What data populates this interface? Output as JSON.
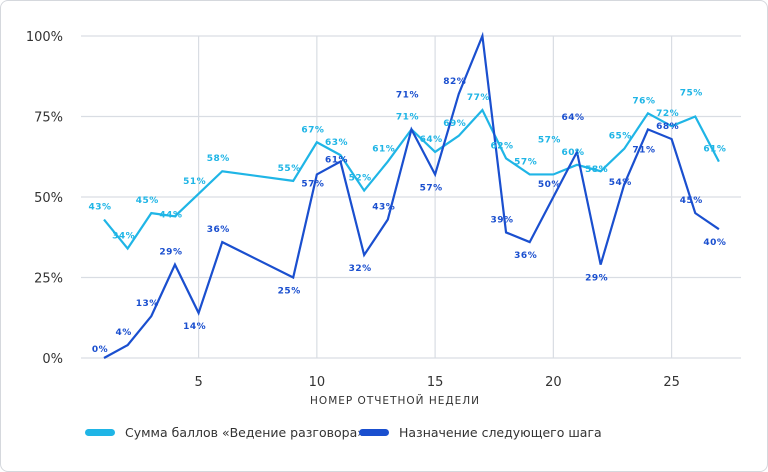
{
  "chart_data": {
    "type": "line",
    "xlabel": "НОМЕР ОТЧЕТНОЙ НЕДЕЛИ",
    "ylabel": "",
    "xlim": [
      1,
      27
    ],
    "ylim": [
      0,
      100
    ],
    "xticks": [
      5,
      10,
      15,
      20,
      25
    ],
    "yticks": [
      0,
      25,
      50,
      75,
      100
    ],
    "ytick_labels": [
      "0%",
      "25%",
      "50%",
      "75%",
      "100%"
    ],
    "legend_position": "bottom",
    "series": [
      {
        "name": "Сумма баллов «Ведение разговора»",
        "color": "#1fb5e6",
        "x": [
          1,
          2,
          3,
          4,
          5,
          6,
          9,
          10,
          11,
          12,
          13,
          14,
          15,
          16,
          17,
          18,
          19,
          20,
          21,
          22,
          23,
          24,
          25,
          26,
          27
        ],
        "values": [
          43,
          34,
          45,
          44,
          51,
          58,
          55,
          67,
          63,
          52,
          61,
          71,
          64,
          69,
          77,
          62,
          57,
          57,
          60,
          58,
          65,
          76,
          72,
          75,
          61
        ],
        "labels": [
          "43%",
          "34%",
          "45%",
          "44%",
          "51%",
          "58%",
          "55%",
          "67%",
          "63%",
          "52%",
          "61%",
          "71%",
          "64%",
          "69%",
          "77%",
          "62%",
          "57%",
          "57%",
          "60%",
          "58%",
          "65%",
          "76%",
          "72%",
          "75%",
          "61%"
        ]
      },
      {
        "name": "Назначение следующего шага",
        "color": "#1a4fcf",
        "x": [
          1,
          2,
          3,
          4,
          5,
          6,
          9,
          10,
          11,
          12,
          13,
          14,
          15,
          16,
          17,
          18,
          19,
          20,
          21,
          22,
          23,
          24,
          25,
          26,
          27
        ],
        "values": [
          0,
          4,
          13,
          29,
          14,
          36,
          25,
          57,
          61,
          32,
          43,
          71,
          57,
          82,
          100,
          39,
          36,
          50,
          64,
          29,
          54,
          71,
          68,
          45,
          40
        ],
        "labels": [
          "0%",
          "4%",
          "13%",
          "29%",
          "14%",
          "36%",
          "25%",
          "57%",
          "61%",
          "32%",
          "43%",
          "71%",
          "57%",
          "82%",
          "",
          "39%",
          "36%",
          "50%",
          "64%",
          "29%",
          "54%",
          "71%",
          "68%",
          "45%",
          "40%"
        ]
      }
    ]
  }
}
